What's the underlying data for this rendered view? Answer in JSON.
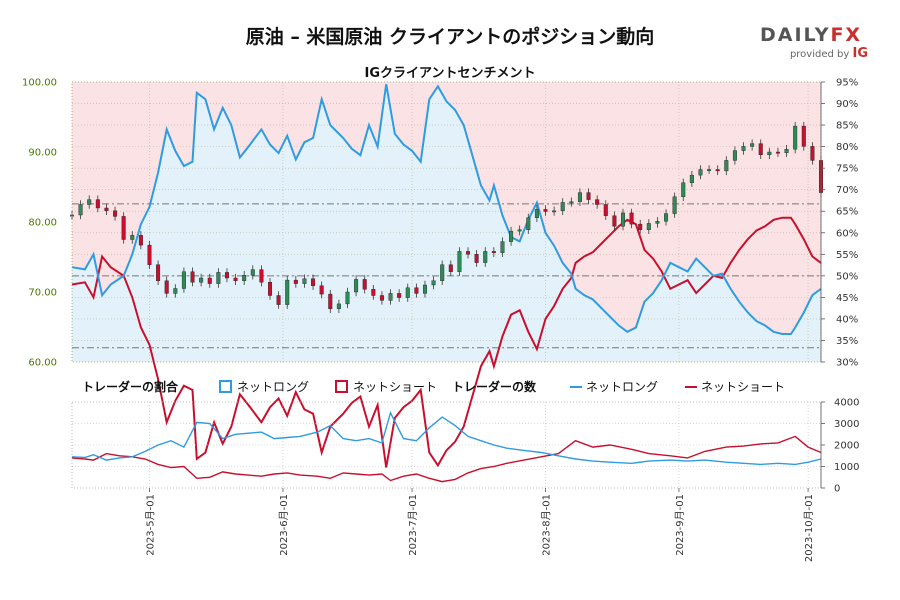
{
  "title": "原油 – 米国原油 クライアントのポジション動向",
  "logo": {
    "word_main": "DAILY",
    "word_accent": "FX",
    "provided_by": "provided by",
    "ig": "IG"
  },
  "colors": {
    "long": "#2f9be0",
    "short": "#c8102e",
    "long_fill": "#e3f1fa",
    "short_fill": "#fbe3e5",
    "candle_up": "#2e8b57",
    "candle_down": "#c8102e",
    "price_axis": "#4a7a00"
  },
  "chart_data": [
    {
      "type": "line",
      "subtitle": "IGクライアントセンチメント",
      "price_axis": {
        "side": "left",
        "ylim": [
          60,
          100
        ],
        "ticks": [
          "60.00",
          "70.00",
          "80.00",
          "90.00",
          "100.00"
        ]
      },
      "pct_axis": {
        "side": "right",
        "ylim": [
          30,
          95
        ],
        "ticks": [
          "30%",
          "35%",
          "40%",
          "45%",
          "50%",
          "55%",
          "60%",
          "65%",
          "70%",
          "75%",
          "80%",
          "85%",
          "90%",
          "95%"
        ]
      },
      "reference_lines_pct": [
        33.3,
        50,
        66.7
      ],
      "date_range": [
        "2023-04-13",
        "2023-10-04"
      ],
      "net_long_pct": [
        [
          "2023-04-13",
          52
        ],
        [
          "2023-04-16",
          51.5
        ],
        [
          "2023-04-18",
          55
        ],
        [
          "2023-04-20",
          45.5
        ],
        [
          "2023-04-22",
          48
        ],
        [
          "2023-04-25",
          50
        ],
        [
          "2023-04-27",
          55
        ],
        [
          "2023-04-29",
          62
        ],
        [
          "2023-05-01",
          66
        ],
        [
          "2023-05-03",
          74
        ],
        [
          "2023-05-05",
          84
        ],
        [
          "2023-05-07",
          79
        ],
        [
          "2023-05-09",
          75.5
        ],
        [
          "2023-05-11",
          76.5
        ],
        [
          "2023-05-12",
          92.5
        ],
        [
          "2023-05-14",
          91
        ],
        [
          "2023-05-16",
          84
        ],
        [
          "2023-05-18",
          89
        ],
        [
          "2023-05-20",
          85
        ],
        [
          "2023-05-22",
          77.5
        ],
        [
          "2023-05-24",
          80
        ],
        [
          "2023-05-27",
          84
        ],
        [
          "2023-05-29",
          80.5
        ],
        [
          "2023-05-31",
          78.5
        ],
        [
          "2023-06-02",
          82.5
        ],
        [
          "2023-06-04",
          77
        ],
        [
          "2023-06-06",
          81
        ],
        [
          "2023-06-08",
          82
        ],
        [
          "2023-06-10",
          91
        ],
        [
          "2023-06-12",
          85
        ],
        [
          "2023-06-15",
          82
        ],
        [
          "2023-06-17",
          79.5
        ],
        [
          "2023-06-19",
          78
        ],
        [
          "2023-06-21",
          85
        ],
        [
          "2023-06-23",
          80
        ],
        [
          "2023-06-25",
          94.5
        ],
        [
          "2023-06-27",
          83
        ],
        [
          "2023-06-29",
          80.5
        ],
        [
          "2023-07-01",
          79
        ],
        [
          "2023-07-03",
          76.5
        ],
        [
          "2023-07-05",
          91
        ],
        [
          "2023-07-07",
          94
        ],
        [
          "2023-07-09",
          90.5
        ],
        [
          "2023-07-11",
          88.5
        ],
        [
          "2023-07-13",
          85
        ],
        [
          "2023-07-15",
          78
        ],
        [
          "2023-07-17",
          71
        ],
        [
          "2023-07-19",
          67.5
        ],
        [
          "2023-07-20",
          71
        ],
        [
          "2023-07-22",
          64
        ],
        [
          "2023-07-24",
          59
        ],
        [
          "2023-07-26",
          58
        ],
        [
          "2023-07-28",
          63
        ],
        [
          "2023-07-30",
          67
        ],
        [
          "2023-08-01",
          60
        ],
        [
          "2023-08-03",
          57
        ],
        [
          "2023-08-05",
          53
        ],
        [
          "2023-08-07",
          50.5
        ],
        [
          "2023-08-08",
          47
        ],
        [
          "2023-08-10",
          45.5
        ],
        [
          "2023-08-12",
          44.5
        ],
        [
          "2023-08-14",
          42.5
        ],
        [
          "2023-08-16",
          40.5
        ],
        [
          "2023-08-18",
          38.5
        ],
        [
          "2023-08-20",
          37
        ],
        [
          "2023-08-22",
          38
        ],
        [
          "2023-08-24",
          44
        ],
        [
          "2023-08-26",
          46
        ],
        [
          "2023-08-28",
          49
        ],
        [
          "2023-08-30",
          53
        ],
        [
          "2023-09-01",
          52
        ],
        [
          "2023-09-03",
          51
        ],
        [
          "2023-09-05",
          54
        ],
        [
          "2023-09-07",
          52
        ],
        [
          "2023-09-09",
          50
        ],
        [
          "2023-09-11",
          50.5
        ],
        [
          "2023-09-13",
          47
        ],
        [
          "2023-09-15",
          44
        ],
        [
          "2023-09-17",
          41.5
        ],
        [
          "2023-09-19",
          39.5
        ],
        [
          "2023-09-21",
          38.5
        ],
        [
          "2023-09-23",
          37
        ],
        [
          "2023-09-25",
          36.5
        ],
        [
          "2023-09-27",
          36.5
        ],
        [
          "2023-09-28",
          38
        ],
        [
          "2023-09-30",
          41.5
        ],
        [
          "2023-10-02",
          45.5
        ],
        [
          "2023-10-04",
          47
        ]
      ],
      "price": [
        [
          "2023-04-13",
          81.0
        ],
        [
          "2023-04-15",
          82.5
        ],
        [
          "2023-04-17",
          83.2
        ],
        [
          "2023-04-19",
          82.0
        ],
        [
          "2023-04-21",
          81.6
        ],
        [
          "2023-04-23",
          80.8
        ],
        [
          "2023-04-25",
          77.5
        ],
        [
          "2023-04-27",
          78.1
        ],
        [
          "2023-04-29",
          76.7
        ],
        [
          "2023-05-01",
          73.9
        ],
        [
          "2023-05-03",
          71.6
        ],
        [
          "2023-05-05",
          69.8
        ],
        [
          "2023-05-07",
          70.5
        ],
        [
          "2023-05-09",
          72.9
        ],
        [
          "2023-05-11",
          71.4
        ],
        [
          "2023-05-13",
          72.0
        ],
        [
          "2023-05-15",
          71.2
        ],
        [
          "2023-05-17",
          72.8
        ],
        [
          "2023-05-19",
          72.0
        ],
        [
          "2023-05-21",
          71.6
        ],
        [
          "2023-05-23",
          72.4
        ],
        [
          "2023-05-25",
          73.2
        ],
        [
          "2023-05-27",
          71.4
        ],
        [
          "2023-05-29",
          69.5
        ],
        [
          "2023-05-31",
          68.2
        ],
        [
          "2023-06-02",
          71.7
        ],
        [
          "2023-06-04",
          71.2
        ],
        [
          "2023-06-06",
          71.9
        ],
        [
          "2023-06-08",
          70.9
        ],
        [
          "2023-06-10",
          69.7
        ],
        [
          "2023-06-12",
          67.6
        ],
        [
          "2023-06-14",
          68.3
        ],
        [
          "2023-06-16",
          70.0
        ],
        [
          "2023-06-18",
          71.8
        ],
        [
          "2023-06-20",
          70.4
        ],
        [
          "2023-06-22",
          69.5
        ],
        [
          "2023-06-24",
          68.8
        ],
        [
          "2023-06-26",
          69.8
        ],
        [
          "2023-06-28",
          69.2
        ],
        [
          "2023-06-30",
          70.6
        ],
        [
          "2023-07-02",
          69.8
        ],
        [
          "2023-07-04",
          71.0
        ],
        [
          "2023-07-06",
          71.6
        ],
        [
          "2023-07-08",
          73.9
        ],
        [
          "2023-07-10",
          72.9
        ],
        [
          "2023-07-12",
          75.8
        ],
        [
          "2023-07-14",
          75.4
        ],
        [
          "2023-07-16",
          74.2
        ],
        [
          "2023-07-18",
          75.8
        ],
        [
          "2023-07-20",
          75.6
        ],
        [
          "2023-07-22",
          77.2
        ],
        [
          "2023-07-24",
          78.7
        ],
        [
          "2023-07-26",
          78.9
        ],
        [
          "2023-07-28",
          80.6
        ],
        [
          "2023-07-30",
          81.8
        ],
        [
          "2023-08-01",
          81.5
        ],
        [
          "2023-08-03",
          81.6
        ],
        [
          "2023-08-05",
          82.8
        ],
        [
          "2023-08-07",
          82.9
        ],
        [
          "2023-08-09",
          84.2
        ],
        [
          "2023-08-11",
          83.2
        ],
        [
          "2023-08-13",
          82.5
        ],
        [
          "2023-08-15",
          80.9
        ],
        [
          "2023-08-17",
          79.4
        ],
        [
          "2023-08-19",
          81.3
        ],
        [
          "2023-08-21",
          79.7
        ],
        [
          "2023-08-23",
          78.9
        ],
        [
          "2023-08-25",
          79.8
        ],
        [
          "2023-08-27",
          80.1
        ],
        [
          "2023-08-29",
          81.2
        ],
        [
          "2023-08-31",
          83.6
        ],
        [
          "2023-09-02",
          85.6
        ],
        [
          "2023-09-04",
          86.7
        ],
        [
          "2023-09-06",
          87.5
        ],
        [
          "2023-09-08",
          87.5
        ],
        [
          "2023-09-10",
          87.3
        ],
        [
          "2023-09-12",
          88.8
        ],
        [
          "2023-09-14",
          90.2
        ],
        [
          "2023-09-16",
          90.8
        ],
        [
          "2023-09-18",
          91.2
        ],
        [
          "2023-09-20",
          89.6
        ],
        [
          "2023-09-22",
          90.0
        ],
        [
          "2023-09-24",
          89.9
        ],
        [
          "2023-09-26",
          90.4
        ],
        [
          "2023-09-28",
          93.7
        ],
        [
          "2023-09-30",
          90.8
        ],
        [
          "2023-10-02",
          88.8
        ],
        [
          "2023-10-04",
          84.2
        ]
      ]
    },
    {
      "type": "line",
      "legend_title_pct": "トレーダーの割合",
      "legend_title_num": "トレーダーの数",
      "legend_long": "ネットロング",
      "legend_short": "ネットショート",
      "count_axis": {
        "side": "right",
        "ylim": [
          0,
          4000
        ],
        "ticks": [
          "0",
          "1000",
          "2000",
          "3000",
          "4000"
        ]
      },
      "x_ticks": [
        "2023-05-01",
        "2023-06-01",
        "2023-07-01",
        "2023-08-01",
        "2023-09-01",
        "2023-10-01"
      ],
      "net_long_count": [
        [
          "2023-04-13",
          1450
        ],
        [
          "2023-04-16",
          1420
        ],
        [
          "2023-04-18",
          1550
        ],
        [
          "2023-04-21",
          1300
        ],
        [
          "2023-04-24",
          1400
        ],
        [
          "2023-04-27",
          1450
        ],
        [
          "2023-04-30",
          1700
        ],
        [
          "2023-05-03",
          2000
        ],
        [
          "2023-05-06",
          2200
        ],
        [
          "2023-05-09",
          1900
        ],
        [
          "2023-05-12",
          3050
        ],
        [
          "2023-05-15",
          3000
        ],
        [
          "2023-05-18",
          2300
        ],
        [
          "2023-05-21",
          2500
        ],
        [
          "2023-05-24",
          2550
        ],
        [
          "2023-05-27",
          2600
        ],
        [
          "2023-05-30",
          2300
        ],
        [
          "2023-06-02",
          2350
        ],
        [
          "2023-06-05",
          2400
        ],
        [
          "2023-06-09",
          2600
        ],
        [
          "2023-06-12",
          2900
        ],
        [
          "2023-06-15",
          2300
        ],
        [
          "2023-06-18",
          2200
        ],
        [
          "2023-06-21",
          2300
        ],
        [
          "2023-06-24",
          2100
        ],
        [
          "2023-06-26",
          3500
        ],
        [
          "2023-06-29",
          2300
        ],
        [
          "2023-07-02",
          2200
        ],
        [
          "2023-07-05",
          2800
        ],
        [
          "2023-07-08",
          3300
        ],
        [
          "2023-07-11",
          2900
        ],
        [
          "2023-07-14",
          2400
        ],
        [
          "2023-07-17",
          2200
        ],
        [
          "2023-07-20",
          2000
        ],
        [
          "2023-07-23",
          1850
        ],
        [
          "2023-07-27",
          1750
        ],
        [
          "2023-07-31",
          1650
        ],
        [
          "2023-08-04",
          1500
        ],
        [
          "2023-08-08",
          1350
        ],
        [
          "2023-08-12",
          1250
        ],
        [
          "2023-08-16",
          1200
        ],
        [
          "2023-08-21",
          1150
        ],
        [
          "2023-08-25",
          1250
        ],
        [
          "2023-08-30",
          1300
        ],
        [
          "2023-09-03",
          1250
        ],
        [
          "2023-09-07",
          1300
        ],
        [
          "2023-09-12",
          1200
        ],
        [
          "2023-09-16",
          1150
        ],
        [
          "2023-09-20",
          1100
        ],
        [
          "2023-09-24",
          1150
        ],
        [
          "2023-09-28",
          1100
        ],
        [
          "2023-10-01",
          1200
        ],
        [
          "2023-10-04",
          1350
        ]
      ],
      "net_short_count": [
        [
          "2023-04-13",
          1400
        ],
        [
          "2023-04-16",
          1350
        ],
        [
          "2023-04-18",
          1300
        ],
        [
          "2023-04-21",
          1600
        ],
        [
          "2023-04-24",
          1500
        ],
        [
          "2023-04-27",
          1450
        ],
        [
          "2023-04-30",
          1350
        ],
        [
          "2023-05-03",
          1100
        ],
        [
          "2023-05-06",
          950
        ],
        [
          "2023-05-09",
          1000
        ],
        [
          "2023-05-12",
          450
        ],
        [
          "2023-05-15",
          500
        ],
        [
          "2023-05-18",
          750
        ],
        [
          "2023-05-21",
          650
        ],
        [
          "2023-05-24",
          600
        ],
        [
          "2023-05-27",
          550
        ],
        [
          "2023-05-30",
          650
        ],
        [
          "2023-06-02",
          700
        ],
        [
          "2023-06-05",
          600
        ],
        [
          "2023-06-09",
          550
        ],
        [
          "2023-06-12",
          450
        ],
        [
          "2023-06-15",
          700
        ],
        [
          "2023-06-18",
          650
        ],
        [
          "2023-06-21",
          600
        ],
        [
          "2023-06-24",
          650
        ],
        [
          "2023-06-26",
          350
        ],
        [
          "2023-06-29",
          550
        ],
        [
          "2023-07-02",
          650
        ],
        [
          "2023-07-05",
          450
        ],
        [
          "2023-07-08",
          300
        ],
        [
          "2023-07-11",
          400
        ],
        [
          "2023-07-14",
          700
        ],
        [
          "2023-07-17",
          900
        ],
        [
          "2023-07-20",
          1000
        ],
        [
          "2023-07-23",
          1150
        ],
        [
          "2023-07-27",
          1300
        ],
        [
          "2023-07-31",
          1450
        ],
        [
          "2023-08-04",
          1600
        ],
        [
          "2023-08-08",
          2200
        ],
        [
          "2023-08-12",
          1900
        ],
        [
          "2023-08-16",
          2000
        ],
        [
          "2023-08-21",
          1800
        ],
        [
          "2023-08-25",
          1600
        ],
        [
          "2023-08-30",
          1500
        ],
        [
          "2023-09-03",
          1400
        ],
        [
          "2023-09-07",
          1700
        ],
        [
          "2023-09-12",
          1900
        ],
        [
          "2023-09-16",
          1950
        ],
        [
          "2023-09-20",
          2050
        ],
        [
          "2023-09-24",
          2100
        ],
        [
          "2023-09-28",
          2400
        ],
        [
          "2023-10-01",
          1900
        ],
        [
          "2023-10-04",
          1650
        ]
      ]
    }
  ]
}
